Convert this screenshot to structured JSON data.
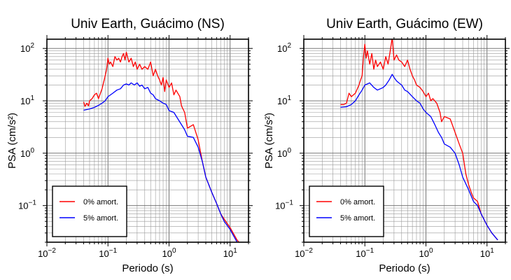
{
  "chart_data": [
    {
      "type": "line",
      "title": "Univ Earth, Guácimo (NS)",
      "xlabel": "Periodo (s)",
      "ylabel": "PSA (cm/s²)",
      "xscale": "log",
      "yscale": "log",
      "xlim": [
        0.01,
        20
      ],
      "ylim": [
        0.02,
        150
      ],
      "grid": true,
      "legend_position": "bottom-left",
      "x_ticks": [
        "10−2",
        "10−1",
        "100",
        "101"
      ],
      "y_ticks": [
        "10−1",
        "100",
        "101",
        "102"
      ],
      "series": [
        {
          "name": "0% amort.",
          "color": "#ff0000",
          "points": [
            [
              0.04,
              9.5
            ],
            [
              0.042,
              7.8
            ],
            [
              0.045,
              9.0
            ],
            [
              0.048,
              8.0
            ],
            [
              0.05,
              10
            ],
            [
              0.055,
              11
            ],
            [
              0.06,
              13
            ],
            [
              0.065,
              14
            ],
            [
              0.07,
              11
            ],
            [
              0.08,
              17
            ],
            [
              0.09,
              30
            ],
            [
              0.095,
              40
            ],
            [
              0.1,
              65
            ],
            [
              0.105,
              50
            ],
            [
              0.11,
              55
            ],
            [
              0.12,
              45
            ],
            [
              0.13,
              70
            ],
            [
              0.14,
              60
            ],
            [
              0.15,
              65
            ],
            [
              0.16,
              55
            ],
            [
              0.17,
              70
            ],
            [
              0.18,
              80
            ],
            [
              0.19,
              60
            ],
            [
              0.2,
              85
            ],
            [
              0.22,
              55
            ],
            [
              0.24,
              65
            ],
            [
              0.26,
              45
            ],
            [
              0.28,
              55
            ],
            [
              0.3,
              40
            ],
            [
              0.33,
              50
            ],
            [
              0.36,
              40
            ],
            [
              0.4,
              45
            ],
            [
              0.45,
              40
            ],
            [
              0.5,
              55
            ],
            [
              0.55,
              30
            ],
            [
              0.6,
              40
            ],
            [
              0.65,
              30
            ],
            [
              0.7,
              25
            ],
            [
              0.75,
              20
            ],
            [
              0.8,
              28
            ],
            [
              0.85,
              15
            ],
            [
              0.9,
              25
            ],
            [
              1.0,
              18
            ],
            [
              1.1,
              22
            ],
            [
              1.2,
              13
            ],
            [
              1.3,
              16
            ],
            [
              1.5,
              12
            ],
            [
              1.6,
              8
            ],
            [
              1.8,
              6
            ],
            [
              2.0,
              3.0
            ],
            [
              2.5,
              3.5
            ],
            [
              3.0,
              1.8
            ],
            [
              3.5,
              0.7
            ],
            [
              4.0,
              0.35
            ],
            [
              5.0,
              0.18
            ],
            [
              6.0,
              0.11
            ],
            [
              7.0,
              0.07
            ],
            [
              8.0,
              0.055
            ],
            [
              10,
              0.038
            ],
            [
              13,
              0.022
            ],
            [
              14,
              0.02
            ]
          ]
        },
        {
          "name": "5% amort.",
          "color": "#0000ff",
          "points": [
            [
              0.04,
              6.6
            ],
            [
              0.05,
              7.0
            ],
            [
              0.06,
              7.5
            ],
            [
              0.07,
              8.2
            ],
            [
              0.08,
              9.0
            ],
            [
              0.09,
              10
            ],
            [
              0.1,
              12
            ],
            [
              0.12,
              14
            ],
            [
              0.14,
              16
            ],
            [
              0.16,
              17
            ],
            [
              0.18,
              20
            ],
            [
              0.2,
              21
            ],
            [
              0.22,
              20
            ],
            [
              0.24,
              22
            ],
            [
              0.27,
              20
            ],
            [
              0.3,
              22
            ],
            [
              0.33,
              19
            ],
            [
              0.36,
              20
            ],
            [
              0.4,
              17
            ],
            [
              0.45,
              18
            ],
            [
              0.5,
              14
            ],
            [
              0.55,
              13
            ],
            [
              0.6,
              11
            ],
            [
              0.7,
              10
            ],
            [
              0.8,
              9
            ],
            [
              0.9,
              8.5
            ],
            [
              1.0,
              6.5
            ],
            [
              1.2,
              6
            ],
            [
              1.4,
              4.5
            ],
            [
              1.6,
              3.5
            ],
            [
              1.8,
              2.8
            ],
            [
              2.0,
              2.1
            ],
            [
              2.5,
              2.0
            ],
            [
              3.0,
              1.3
            ],
            [
              3.5,
              0.7
            ],
            [
              4.0,
              0.35
            ],
            [
              5.0,
              0.18
            ],
            [
              6.0,
              0.11
            ],
            [
              7.0,
              0.07
            ],
            [
              8.0,
              0.05
            ],
            [
              10,
              0.035
            ],
            [
              13,
              0.02
            ],
            [
              14,
              0.018
            ]
          ]
        }
      ]
    },
    {
      "type": "line",
      "title": "Univ Earth, Guácimo (EW)",
      "xlabel": "Periodo (s)",
      "ylabel": "PSA (cm/s²)",
      "xscale": "log",
      "yscale": "log",
      "xlim": [
        0.01,
        20
      ],
      "ylim": [
        0.02,
        150
      ],
      "grid": true,
      "legend_position": "bottom-left",
      "x_ticks": [
        "10−2",
        "10−1",
        "100",
        "101"
      ],
      "y_ticks": [
        "10−1",
        "100",
        "101",
        "102"
      ],
      "series": [
        {
          "name": "0% amort.",
          "color": "#ff0000",
          "points": [
            [
              0.04,
              8.5
            ],
            [
              0.045,
              8.5
            ],
            [
              0.05,
              9.0
            ],
            [
              0.055,
              14
            ],
            [
              0.06,
              12
            ],
            [
              0.065,
              13
            ],
            [
              0.07,
              14
            ],
            [
              0.08,
              20
            ],
            [
              0.085,
              25
            ],
            [
              0.09,
              30
            ],
            [
              0.095,
              70
            ],
            [
              0.1,
              120
            ],
            [
              0.105,
              65
            ],
            [
              0.11,
              90
            ],
            [
              0.12,
              50
            ],
            [
              0.13,
              80
            ],
            [
              0.14,
              40
            ],
            [
              0.15,
              60
            ],
            [
              0.16,
              45
            ],
            [
              0.18,
              55
            ],
            [
              0.2,
              40
            ],
            [
              0.22,
              70
            ],
            [
              0.24,
              50
            ],
            [
              0.26,
              90
            ],
            [
              0.28,
              160
            ],
            [
              0.3,
              60
            ],
            [
              0.33,
              75
            ],
            [
              0.36,
              60
            ],
            [
              0.4,
              55
            ],
            [
              0.45,
              45
            ],
            [
              0.5,
              60
            ],
            [
              0.55,
              40
            ],
            [
              0.6,
              30
            ],
            [
              0.65,
              25
            ],
            [
              0.7,
              20
            ],
            [
              0.8,
              18
            ],
            [
              0.9,
              15
            ],
            [
              1.0,
              12
            ],
            [
              1.1,
              14
            ],
            [
              1.2,
              10
            ],
            [
              1.3,
              11
            ],
            [
              1.5,
              9
            ],
            [
              1.7,
              6
            ],
            [
              1.8,
              4
            ],
            [
              2.0,
              5
            ],
            [
              2.5,
              4.5
            ],
            [
              3.0,
              2.5
            ],
            [
              3.5,
              1.5
            ],
            [
              4.0,
              1.0
            ],
            [
              4.5,
              0.4
            ],
            [
              5.0,
              0.25
            ],
            [
              5.5,
              0.18
            ],
            [
              6.0,
              0.14
            ],
            [
              7.0,
              0.12
            ],
            [
              8.0,
              0.07
            ],
            [
              10,
              0.042
            ],
            [
              12,
              0.03
            ],
            [
              15,
              0.022
            ]
          ]
        },
        {
          "name": "5% amort.",
          "color": "#0000ff",
          "points": [
            [
              0.04,
              7.5
            ],
            [
              0.05,
              7.7
            ],
            [
              0.06,
              8.5
            ],
            [
              0.07,
              10
            ],
            [
              0.08,
              13
            ],
            [
              0.09,
              16
            ],
            [
              0.1,
              20
            ],
            [
              0.11,
              21
            ],
            [
              0.12,
              22
            ],
            [
              0.14,
              18
            ],
            [
              0.16,
              16
            ],
            [
              0.18,
              17
            ],
            [
              0.2,
              18
            ],
            [
              0.22,
              20
            ],
            [
              0.25,
              25
            ],
            [
              0.28,
              32
            ],
            [
              0.3,
              28
            ],
            [
              0.33,
              24
            ],
            [
              0.36,
              22
            ],
            [
              0.4,
              20
            ],
            [
              0.45,
              16
            ],
            [
              0.5,
              15
            ],
            [
              0.6,
              12
            ],
            [
              0.7,
              10
            ],
            [
              0.8,
              9
            ],
            [
              0.9,
              7
            ],
            [
              1.0,
              6
            ],
            [
              1.2,
              5
            ],
            [
              1.4,
              3.5
            ],
            [
              1.6,
              2.5
            ],
            [
              1.8,
              2.0
            ],
            [
              2.0,
              1.5
            ],
            [
              2.5,
              1.3
            ],
            [
              3.0,
              1.0
            ],
            [
              3.5,
              0.6
            ],
            [
              4.0,
              0.35
            ],
            [
              5.0,
              0.2
            ],
            [
              6.0,
              0.12
            ],
            [
              7.0,
              0.1
            ],
            [
              8.0,
              0.07
            ],
            [
              10,
              0.042
            ],
            [
              12,
              0.03
            ],
            [
              15,
              0.022
            ]
          ]
        }
      ]
    }
  ]
}
